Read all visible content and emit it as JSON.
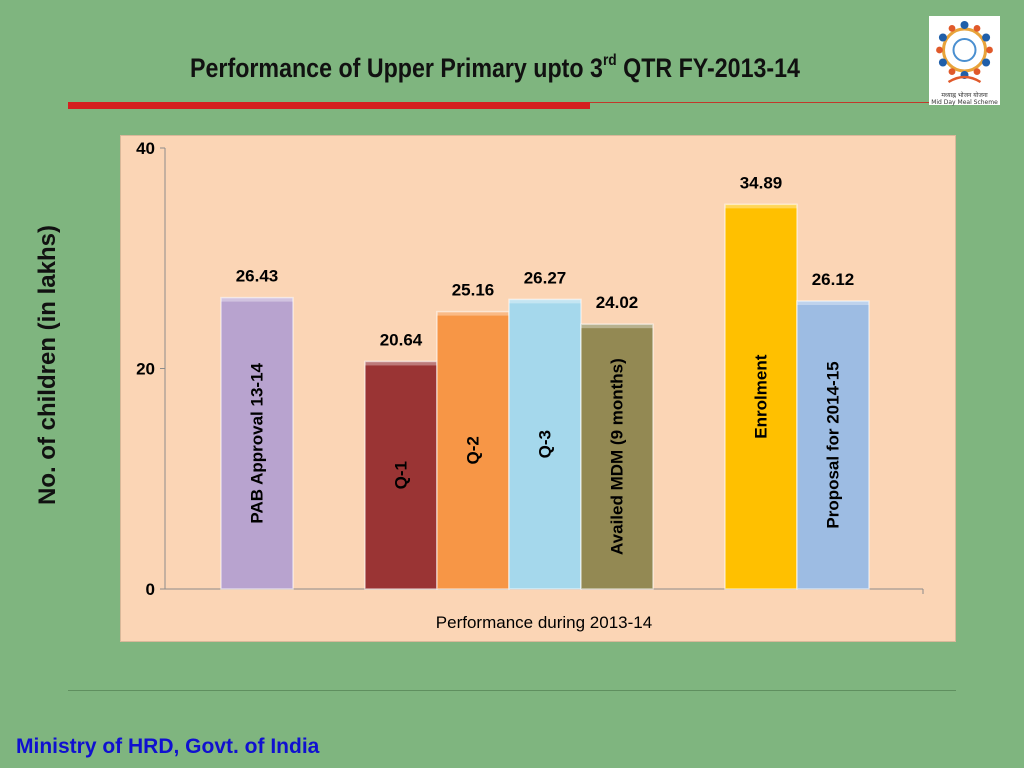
{
  "slide": {
    "title_main": "Performance of Upper Primary upto 3",
    "title_sup": "rd",
    "title_tail": " QTR FY-2013-14",
    "footer": "Ministry of HRD, Govt. of India",
    "logo_caption_line1": "मध्याह्न भोजन योजना",
    "logo_caption_line2": "Mid Day Meal Scheme",
    "accent_red": "#d51f1f",
    "background": "#7fb57f",
    "footer_color": "#1010d0"
  },
  "chart_data": {
    "type": "bar",
    "title": "",
    "xlabel": "Performance during 2013-14",
    "ylabel": "No. of children (in lakhs)",
    "ylim": [
      0,
      40
    ],
    "yticks": [
      0,
      20,
      40
    ],
    "grid": false,
    "legend": "none",
    "plot_background": "#fbd5b5",
    "bars": [
      {
        "label": "PAB Approval 13-14",
        "value": 26.43,
        "value_label": "26.43",
        "color": "#b8a3cf",
        "group": 0
      },
      {
        "label": "Q-1",
        "value": 20.64,
        "value_label": "20.64",
        "color": "#9a3434",
        "group": 1
      },
      {
        "label": "Q-2",
        "value": 25.16,
        "value_label": "25.16",
        "color": "#f79646",
        "group": 1
      },
      {
        "label": "Q-3",
        "value": 26.27,
        "value_label": "26.27",
        "color": "#a5d8ec",
        "group": 1
      },
      {
        "label": "Availed  MDM (9 months)",
        "value": 24.02,
        "value_label": "24.02",
        "color": "#938953",
        "group": 1
      },
      {
        "label": "Enrolment",
        "value": 34.89,
        "value_label": "34.89",
        "color": "#ffc000",
        "group": 2
      },
      {
        "label": "Proposal for 2014-15",
        "value": 26.12,
        "value_label": "26.12",
        "color": "#9dbce3",
        "group": 2
      }
    ]
  }
}
